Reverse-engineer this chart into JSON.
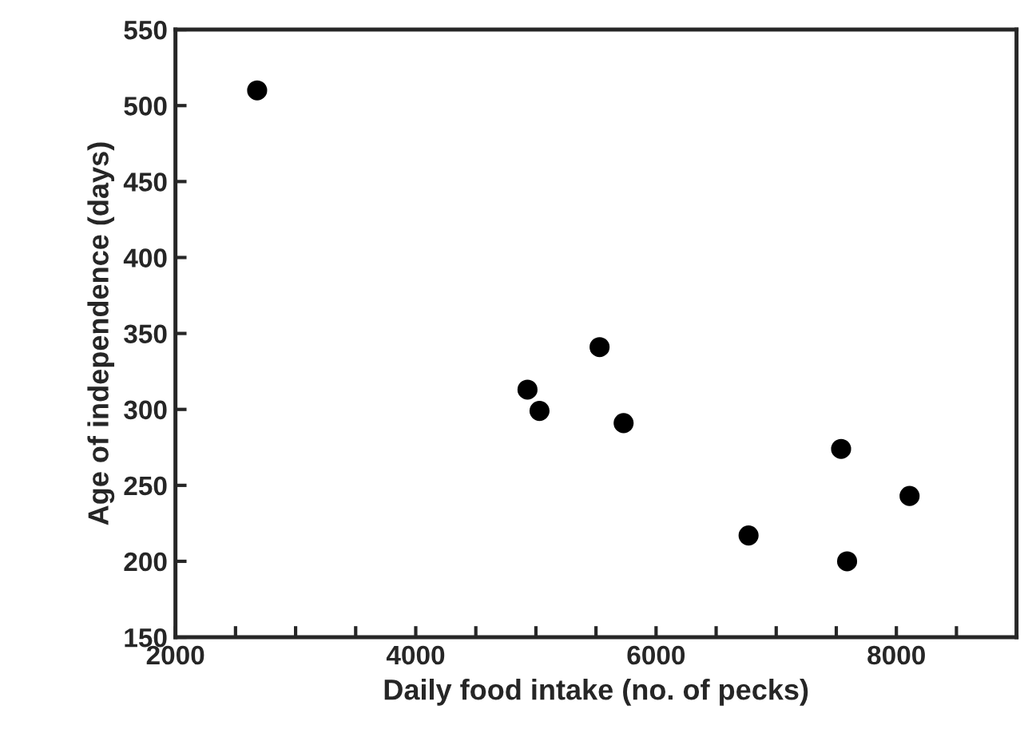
{
  "chart_data": {
    "type": "scatter",
    "xlabel": "Daily food intake (no. of pecks)",
    "ylabel": "Age of independence (days)",
    "x": [
      2680,
      4930,
      5030,
      5530,
      5730,
      6770,
      7540,
      7590,
      8110
    ],
    "values": [
      510,
      313,
      299,
      341,
      291,
      217,
      274,
      200,
      243
    ],
    "color": "#000000",
    "marker": "circle",
    "xlim": [
      2000,
      9000
    ],
    "xticks": [
      2000,
      {
        "value": 2500,
        "label": null
      },
      {
        "value": 3000,
        "label": null
      },
      {
        "value": 3500,
        "label": null
      },
      4000,
      {
        "value": 4500,
        "label": null
      },
      {
        "value": 5000,
        "label": null
      },
      {
        "value": 5500,
        "label": null
      },
      6000,
      {
        "value": 6500,
        "label": null
      },
      {
        "value": 7000,
        "label": null
      },
      {
        "value": 7500,
        "label": null
      },
      8000,
      {
        "value": 8500,
        "label": null
      }
    ],
    "ylim": [
      150,
      550
    ],
    "yticks": [
      150,
      200,
      250,
      300,
      350,
      400,
      450,
      500,
      550
    ],
    "grid": false,
    "legend": false
  }
}
